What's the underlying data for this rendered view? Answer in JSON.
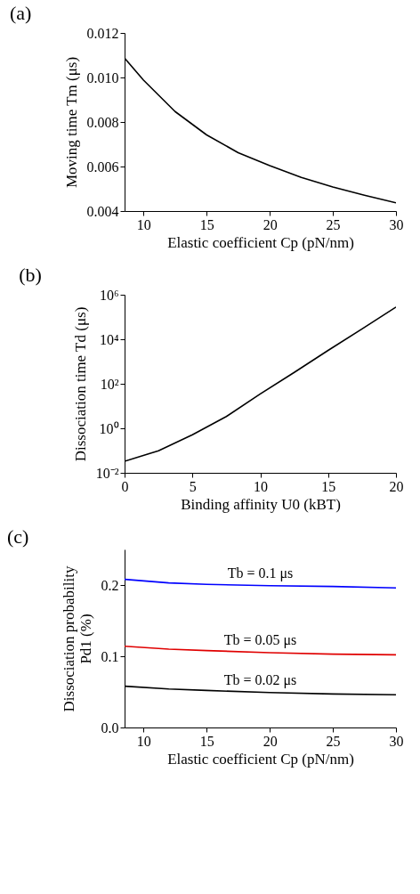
{
  "chart_data": [
    {
      "type": "line",
      "title": "(a)",
      "xlabel": "Elastic coefficient Cp (pN/nm)",
      "ylabel": "Moving time Tm (μs)",
      "xlim": [
        8.5,
        30
      ],
      "xticks": [
        10,
        15,
        20,
        25,
        30
      ],
      "ylim": [
        0.004,
        0.012
      ],
      "yticks": [
        {
          "value": 0.004,
          "label": "0.004"
        },
        {
          "value": 0.006,
          "label": "0.006"
        },
        {
          "value": 0.008,
          "label": "0.008"
        },
        {
          "value": 0.01,
          "label": "0.010"
        },
        {
          "value": 0.012,
          "label": "0.012"
        }
      ],
      "grid": false,
      "marker": "none",
      "line_style": "solid",
      "series": [
        {
          "color": "#000000",
          "x": [
            8.5,
            10,
            12.5,
            15,
            17.5,
            20,
            22.5,
            25,
            27.5,
            30
          ],
          "values": [
            0.01087,
            0.00988,
            0.00847,
            0.00742,
            0.00662,
            0.00604,
            0.00551,
            0.00508,
            0.00471,
            0.00437
          ]
        }
      ]
    },
    {
      "type": "line",
      "title": "(b)",
      "xlabel": "Binding affinity U0 (kBT)",
      "ylabel": "Dissociation time Td (μs)",
      "log": "y",
      "xlim": [
        0,
        20
      ],
      "xticks": [
        0,
        5,
        10,
        15,
        20
      ],
      "ylim": [
        0.01,
        1000000
      ],
      "yticks": [
        {
          "value": 0.01,
          "label": "10⁻²"
        },
        {
          "value": 1,
          "label": "10⁰"
        },
        {
          "value": 100,
          "label": "10²"
        },
        {
          "value": 10000,
          "label": "10⁴"
        },
        {
          "value": 1000000,
          "label": "10⁶"
        }
      ],
      "grid": false,
      "marker": "none",
      "line_style": "solid",
      "series": [
        {
          "color": "#000000",
          "x": [
            0,
            2.5,
            5,
            7.5,
            10,
            12.5,
            15,
            17.5,
            20
          ],
          "values": [
            0.033,
            0.098,
            0.51,
            3.4,
            35,
            324,
            3160,
            29000,
            280000
          ]
        }
      ]
    },
    {
      "type": "line",
      "title": "(c)",
      "xlabel": "Elastic coefficient Cp (pN/nm)",
      "ylabel": "Dissociation probability\nPd1 (%)",
      "xlim": [
        8.5,
        30
      ],
      "xticks": [
        10,
        15,
        20,
        25,
        30
      ],
      "ylim": [
        0,
        0.25
      ],
      "yticks": [
        {
          "value": 0,
          "label": "0.0"
        },
        {
          "value": 0.1,
          "label": "0.1"
        },
        {
          "value": 0.2,
          "label": "0.2"
        }
      ],
      "grid": false,
      "marker": "none",
      "line_style": "solid",
      "series": [
        {
          "color": "#0000ff",
          "x": [
            8.5,
            12,
            15,
            20,
            25,
            30
          ],
          "values": [
            0.208,
            0.203,
            0.201,
            0.199,
            0.198,
            0.196
          ]
        },
        {
          "color": "#e00000",
          "x": [
            8.5,
            12,
            15,
            20,
            25,
            30
          ],
          "values": [
            0.114,
            0.11,
            0.108,
            0.105,
            0.103,
            0.102
          ]
        },
        {
          "color": "#000000",
          "x": [
            8.5,
            12,
            15,
            20,
            25,
            30
          ],
          "values": [
            0.058,
            0.054,
            0.052,
            0.049,
            0.047,
            0.046
          ]
        }
      ],
      "annotations": [
        "Tb = 0.1 μs",
        "Tb = 0.05 μs",
        "Tb = 0.02 μs"
      ]
    }
  ]
}
